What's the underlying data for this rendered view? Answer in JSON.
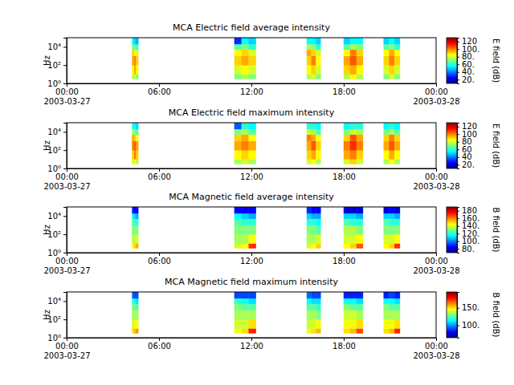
{
  "chart_data": [
    {
      "type": "heatmap",
      "title": "MCA  Electric field average intensity",
      "y_label": "Hz",
      "log": "y",
      "xlim": [
        "2003-03-27T00:00",
        "2003-03-28T00:00"
      ],
      "xticks": [
        {
          "value": "2003-03-27T00:00",
          "label": "00:00\n2003-03-27"
        },
        {
          "value": "2003-03-27T06:00",
          "label": "06:00"
        },
        {
          "value": "2003-03-27T12:00",
          "label": "12:00"
        },
        {
          "value": "2003-03-27T18:00",
          "label": "18:00"
        },
        {
          "value": "2003-03-28T00:00",
          "label": "00:00\n2003-03-28"
        }
      ],
      "ylim": [
        1,
        100000
      ],
      "yticks": [
        {
          "value": 1,
          "label": "10⁰"
        },
        {
          "value": 100,
          "label": "10²"
        },
        {
          "value": 10000,
          "label": "10⁴"
        }
      ],
      "y_edges": [
        3,
        10,
        100,
        1000,
        5000,
        20000,
        100000
      ],
      "blocks": [
        {
          "start": "2003-03-27T04:15",
          "end": "2003-03-27T04:39",
          "values": [
            [
              75,
              85,
              95,
              90,
              70,
              55
            ],
            [
              80,
              95,
              100,
              85,
              65,
              50
            ],
            [
              70,
              85,
              90,
              80,
              60,
              45
            ]
          ]
        },
        {
          "start": "2003-03-27T10:54",
          "end": "2003-03-27T12:18",
          "values": [
            [
              70,
              80,
              90,
              85,
              65,
              30
            ],
            [
              75,
              85,
              95,
              90,
              70,
              55
            ],
            [
              70,
              80,
              90,
              80,
              60,
              50
            ]
          ]
        },
        {
          "start": "2003-03-27T15:36",
          "end": "2003-03-27T16:30",
          "values": [
            [
              75,
              85,
              90,
              95,
              75,
              55
            ],
            [
              80,
              90,
              100,
              90,
              70,
              55
            ],
            [
              70,
              80,
              85,
              80,
              60,
              50
            ]
          ]
        },
        {
          "start": "2003-03-27T18:00",
          "end": "2003-03-27T19:15",
          "values": [
            [
              75,
              90,
              95,
              85,
              65,
              50
            ],
            [
              85,
              95,
              105,
              100,
              75,
              55
            ],
            [
              75,
              85,
              95,
              90,
              70,
              55
            ]
          ]
        },
        {
          "start": "2003-03-27T20:36",
          "end": "2003-03-27T21:39",
          "values": [
            [
              70,
              80,
              90,
              85,
              65,
              50
            ],
            [
              80,
              90,
              100,
              95,
              70,
              55
            ],
            [
              70,
              80,
              90,
              85,
              60,
              50
            ]
          ]
        }
      ],
      "colorbar": {
        "label": "E field (dB)",
        "lim": [
          10,
          130
        ],
        "ticks": [
          {
            "value": 20,
            "label": "20."
          },
          {
            "value": 40,
            "label": "40."
          },
          {
            "value": 60,
            "label": "60."
          },
          {
            "value": 80,
            "label": "80."
          },
          {
            "value": 100,
            "label": "100."
          },
          120
        ]
      }
    },
    {
      "type": "heatmap",
      "title": "MCA  Electric field maximum intensity",
      "y_label": "Hz",
      "log": "y",
      "xlim": [
        "2003-03-27T00:00",
        "2003-03-28T00:00"
      ],
      "xticks": [
        {
          "value": "2003-03-27T00:00",
          "label": "00:00\n2003-03-27"
        },
        {
          "value": "2003-03-27T06:00",
          "label": "06:00"
        },
        {
          "value": "2003-03-27T12:00",
          "label": "12:00"
        },
        {
          "value": "2003-03-27T18:00",
          "label": "18:00"
        },
        {
          "value": "2003-03-28T00:00",
          "label": "00:00\n2003-03-28"
        }
      ],
      "ylim": [
        1,
        100000
      ],
      "yticks": [
        {
          "value": 1,
          "label": "10⁰"
        },
        {
          "value": 100,
          "label": "10²"
        },
        {
          "value": 10000,
          "label": "10⁴"
        }
      ],
      "y_edges": [
        3,
        10,
        100,
        1000,
        5000,
        20000,
        100000
      ],
      "blocks": [
        {
          "start": "2003-03-27T04:15",
          "end": "2003-03-27T04:39",
          "values": [
            [
              80,
              90,
              100,
              95,
              75,
              60
            ],
            [
              85,
              100,
              105,
              90,
              70,
              55
            ],
            [
              75,
              90,
              95,
              85,
              65,
              50
            ]
          ]
        },
        {
          "start": "2003-03-27T10:54",
          "end": "2003-03-27T12:18",
          "values": [
            [
              75,
              85,
              95,
              90,
              70,
              35
            ],
            [
              80,
              90,
              100,
              95,
              75,
              60
            ],
            [
              75,
              85,
              95,
              85,
              65,
              55
            ]
          ]
        },
        {
          "start": "2003-03-27T15:36",
          "end": "2003-03-27T16:30",
          "values": [
            [
              80,
              90,
              95,
              100,
              80,
              60
            ],
            [
              85,
              95,
              105,
              95,
              75,
              60
            ],
            [
              75,
              85,
              90,
              85,
              65,
              55
            ]
          ]
        },
        {
          "start": "2003-03-27T18:00",
          "end": "2003-03-27T19:15",
          "values": [
            [
              80,
              95,
              100,
              90,
              70,
              55
            ],
            [
              90,
              100,
              110,
              105,
              80,
              60
            ],
            [
              80,
              90,
              100,
              95,
              75,
              60
            ]
          ]
        },
        {
          "start": "2003-03-27T20:36",
          "end": "2003-03-27T21:39",
          "values": [
            [
              75,
              85,
              95,
              90,
              70,
              55
            ],
            [
              85,
              95,
              105,
              100,
              75,
              60
            ],
            [
              75,
              85,
              95,
              90,
              65,
              55
            ]
          ]
        }
      ],
      "colorbar": {
        "label": "E field (dB)",
        "lim": [
          10,
          130
        ],
        "ticks": [
          {
            "value": 20,
            "label": "20."
          },
          40,
          60,
          80,
          100,
          120
        ]
      }
    },
    {
      "type": "heatmap",
      "title": "MCA  Magnetic field average intensity",
      "y_label": "Hz",
      "log": "y",
      "xlim": [
        "2003-03-27T00:00",
        "2003-03-28T00:00"
      ],
      "xticks": [
        {
          "value": "2003-03-27T00:00",
          "label": "00:00\n2003-03-27"
        },
        {
          "value": "2003-03-27T06:00",
          "label": "06:00"
        },
        {
          "value": "2003-03-27T12:00",
          "label": "12:00"
        },
        {
          "value": "2003-03-27T18:00",
          "label": "18:00"
        },
        {
          "value": "2003-03-28T00:00",
          "label": "00:00\n2003-03-28"
        }
      ],
      "ylim": [
        1,
        100000
      ],
      "yticks": [
        {
          "value": 1,
          "label": "10⁰"
        },
        {
          "value": 100,
          "label": "10²"
        },
        {
          "value": 10000,
          "label": "10⁴"
        }
      ],
      "y_edges": [
        3,
        10,
        100,
        1000,
        5000,
        20000,
        100000
      ],
      "blocks": [
        {
          "start": "2003-03-27T04:15",
          "end": "2003-03-27T04:39",
          "values": [
            [
              145,
              135,
              130,
              125,
              115,
              90
            ],
            [
              150,
              140,
              130,
              120,
              110,
              85
            ],
            [
              155,
              140,
              130,
              120,
              105,
              85
            ]
          ]
        },
        {
          "start": "2003-03-27T10:54",
          "end": "2003-03-27T12:18",
          "values": [
            [
              140,
              135,
              130,
              125,
              115,
              85
            ],
            [
              145,
              135,
              130,
              120,
              110,
              85
            ],
            [
              170,
              145,
              130,
              120,
              105,
              85
            ]
          ]
        },
        {
          "start": "2003-03-27T15:36",
          "end": "2003-03-27T16:30",
          "values": [
            [
              140,
              135,
              130,
              120,
              110,
              90
            ],
            [
              145,
              135,
              130,
              120,
              105,
              85
            ],
            [
              150,
              140,
              125,
              115,
              105,
              85
            ]
          ]
        },
        {
          "start": "2003-03-27T18:00",
          "end": "2003-03-27T19:15",
          "values": [
            [
              145,
              140,
              135,
              125,
              110,
              80
            ],
            [
              150,
              140,
              135,
              120,
              110,
              80
            ],
            [
              165,
              145,
              130,
              120,
              105,
              80
            ]
          ]
        },
        {
          "start": "2003-03-27T20:36",
          "end": "2003-03-27T21:39",
          "values": [
            [
              145,
              140,
              130,
              125,
              110,
              80
            ],
            [
              150,
              140,
              130,
              120,
              110,
              85
            ],
            [
              170,
              145,
              130,
              120,
              105,
              80
            ]
          ]
        }
      ],
      "colorbar": {
        "label": "B field (dB)",
        "lim": [
          70,
          190
        ],
        "ticks": [
          {
            "value": 80,
            "label": "80."
          },
          {
            "value": 100,
            "label": "100."
          },
          {
            "value": 120,
            "label": "120."
          },
          {
            "value": 140,
            "label": "140."
          },
          {
            "value": 160,
            "label": "160."
          },
          180
        ]
      }
    },
    {
      "type": "heatmap",
      "title": "MCA  Magnetic field maximum intensity",
      "y_label": "Hz",
      "log": "y",
      "xlim": [
        "2003-03-27T00:00",
        "2003-03-28T00:00"
      ],
      "xticks": [
        {
          "value": "2003-03-27T00:00",
          "label": "00:00\n2003-03-27"
        },
        {
          "value": "2003-03-27T06:00",
          "label": "06:00"
        },
        {
          "value": "2003-03-27T12:00",
          "label": "12:00"
        },
        {
          "value": "2003-03-27T18:00",
          "label": "18:00"
        },
        {
          "value": "2003-03-28T00:00",
          "label": "00:00\n2003-03-28"
        }
      ],
      "ylim": [
        1,
        100000
      ],
      "yticks": [
        {
          "value": 1,
          "label": "10⁰"
        },
        {
          "value": 100,
          "label": "10²"
        },
        {
          "value": 10000,
          "label": "10⁴"
        }
      ],
      "y_edges": [
        3,
        10,
        100,
        1000,
        5000,
        20000,
        100000
      ],
      "blocks": [
        {
          "start": "2003-03-27T04:15",
          "end": "2003-03-27T04:39",
          "values": [
            [
              150,
              140,
              135,
              130,
              120,
              95
            ],
            [
              155,
              145,
              135,
              125,
              115,
              90
            ],
            [
              160,
              145,
              135,
              125,
              110,
              90
            ]
          ]
        },
        {
          "start": "2003-03-27T10:54",
          "end": "2003-03-27T12:18",
          "values": [
            [
              145,
              140,
              135,
              130,
              120,
              90
            ],
            [
              150,
              140,
              135,
              125,
              115,
              90
            ],
            [
              175,
              150,
              135,
              125,
              110,
              90
            ]
          ]
        },
        {
          "start": "2003-03-27T15:36",
          "end": "2003-03-27T16:30",
          "values": [
            [
              145,
              140,
              135,
              125,
              115,
              95
            ],
            [
              150,
              140,
              135,
              125,
              110,
              90
            ],
            [
              155,
              145,
              130,
              120,
              110,
              90
            ]
          ]
        },
        {
          "start": "2003-03-27T18:00",
          "end": "2003-03-27T19:15",
          "values": [
            [
              150,
              145,
              140,
              130,
              115,
              85
            ],
            [
              155,
              145,
              140,
              125,
              115,
              85
            ],
            [
              170,
              150,
              135,
              125,
              110,
              85
            ]
          ]
        },
        {
          "start": "2003-03-27T20:36",
          "end": "2003-03-27T21:39",
          "values": [
            [
              150,
              145,
              135,
              130,
              115,
              85
            ],
            [
              155,
              145,
              135,
              125,
              115,
              90
            ],
            [
              175,
              150,
              135,
              125,
              110,
              85
            ]
          ]
        }
      ],
      "colorbar": {
        "label": "B field (dB)",
        "lim": [
          65,
          195
        ],
        "ticks": [
          {
            "value": 100,
            "label": "100."
          },
          {
            "value": 150,
            "label": "150."
          }
        ]
      }
    }
  ]
}
